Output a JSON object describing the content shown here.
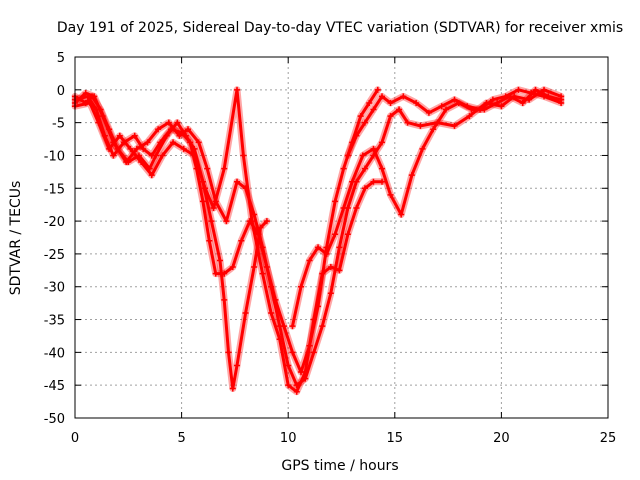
{
  "chart_data": {
    "type": "scatter",
    "title": "Day 191 of 2025, Sidereal Day-to-day VTEC variation (SDTVAR) for receiver xmis",
    "xlabel": "GPS time / hours",
    "ylabel": "SDTVAR / TECUs",
    "xlim": [
      0,
      25
    ],
    "ylim": [
      -50,
      5
    ],
    "xticks": [
      0,
      5,
      10,
      15,
      20,
      25
    ],
    "yticks": [
      5,
      0,
      -5,
      -10,
      -15,
      -20,
      -25,
      -30,
      -35,
      -40,
      -45,
      -50
    ],
    "grid": true,
    "marker": "plus",
    "color": "#ff0000",
    "series": [
      {
        "points": [
          [
            0,
            -1
          ],
          [
            0.5,
            -2
          ],
          [
            0.8,
            -1
          ],
          [
            1.2,
            -3
          ],
          [
            1.6,
            -6
          ],
          [
            2,
            -9
          ],
          [
            2.5,
            -11
          ],
          [
            3,
            -10
          ],
          [
            3.5,
            -12
          ],
          [
            3.8,
            -10
          ],
          [
            4.3,
            -7
          ],
          [
            4.8,
            -5
          ],
          [
            5.2,
            -7
          ],
          [
            5.6,
            -9
          ],
          [
            6,
            -14
          ],
          [
            6.4,
            -20
          ],
          [
            6.8,
            -26
          ],
          [
            7.0,
            -32
          ],
          [
            7.2,
            -40
          ],
          [
            7.4,
            -45.5
          ],
          [
            7.6,
            -42
          ],
          [
            8.0,
            -34
          ],
          [
            8.4,
            -27
          ],
          [
            8.7,
            -21
          ],
          [
            9.0,
            -20
          ]
        ]
      },
      {
        "points": [
          [
            0,
            -1.5
          ],
          [
            0.6,
            -1
          ],
          [
            1.0,
            -3
          ],
          [
            1.4,
            -7
          ],
          [
            1.8,
            -10
          ],
          [
            2.3,
            -8
          ],
          [
            2.8,
            -7
          ],
          [
            3.2,
            -9
          ],
          [
            3.6,
            -10
          ],
          [
            4.0,
            -8
          ],
          [
            4.5,
            -6
          ],
          [
            5.0,
            -6.5
          ],
          [
            5.4,
            -8
          ],
          [
            5.7,
            -12
          ],
          [
            6.0,
            -17
          ],
          [
            6.3,
            -23
          ],
          [
            6.6,
            -28
          ],
          [
            7.0,
            -28
          ],
          [
            7.4,
            -27
          ],
          [
            7.8,
            -23
          ],
          [
            8.2,
            -20
          ],
          [
            8.6,
            -22
          ],
          [
            9.0,
            -27
          ],
          [
            9.4,
            -32
          ],
          [
            9.8,
            -36
          ],
          [
            10.2,
            -40
          ],
          [
            10.6,
            -43
          ],
          [
            11.0,
            -39
          ],
          [
            11.4,
            -33
          ],
          [
            11.8,
            -24
          ],
          [
            12.2,
            -17
          ],
          [
            12.6,
            -12
          ],
          [
            13.0,
            -8
          ],
          [
            13.4,
            -4
          ],
          [
            13.8,
            -2
          ],
          [
            14.2,
            0
          ]
        ]
      },
      {
        "points": [
          [
            0,
            -2
          ],
          [
            0.5,
            -0.5
          ],
          [
            0.9,
            -1
          ],
          [
            1.3,
            -4
          ],
          [
            1.8,
            -8
          ],
          [
            2.4,
            -11
          ],
          [
            2.9,
            -9
          ],
          [
            3.4,
            -8
          ],
          [
            3.9,
            -6
          ],
          [
            4.4,
            -5
          ],
          [
            4.9,
            -7
          ],
          [
            5.3,
            -6
          ],
          [
            5.8,
            -8
          ],
          [
            6.2,
            -12
          ],
          [
            6.6,
            -17
          ],
          [
            7.1,
            -20
          ],
          [
            7.6,
            -14
          ],
          [
            8.0,
            -15
          ],
          [
            8.4,
            -19
          ],
          [
            8.8,
            -24
          ],
          [
            9.2,
            -30
          ],
          [
            9.6,
            -36
          ],
          [
            10.0,
            -42
          ],
          [
            10.4,
            -45
          ],
          [
            10.8,
            -44
          ],
          [
            11.2,
            -40
          ],
          [
            11.6,
            -36
          ],
          [
            12.0,
            -31
          ],
          [
            12.4,
            -24
          ],
          [
            12.8,
            -18
          ],
          [
            13.2,
            -14
          ],
          [
            13.6,
            -12
          ],
          [
            14.0,
            -10
          ],
          [
            14.4,
            -8
          ],
          [
            14.8,
            -4
          ],
          [
            15.2,
            -3
          ],
          [
            15.6,
            -5
          ],
          [
            16.2,
            -5.5
          ],
          [
            17,
            -5
          ],
          [
            17.8,
            -5.5
          ],
          [
            18.5,
            -4
          ],
          [
            19.3,
            -2
          ],
          [
            20.0,
            -2.5
          ],
          [
            20.6,
            -1
          ],
          [
            21.3,
            -1.5
          ],
          [
            22,
            0
          ],
          [
            22.8,
            -1
          ]
        ]
      },
      {
        "points": [
          [
            0,
            -2.5
          ],
          [
            0.7,
            -2
          ],
          [
            1.1,
            -5
          ],
          [
            1.6,
            -9
          ],
          [
            2.1,
            -7
          ],
          [
            2.6,
            -9
          ],
          [
            3.1,
            -11
          ],
          [
            3.6,
            -13
          ],
          [
            4.1,
            -10
          ],
          [
            4.6,
            -8
          ],
          [
            5.1,
            -9
          ],
          [
            5.6,
            -10
          ],
          [
            6.1,
            -15
          ],
          [
            6.5,
            -18
          ],
          [
            7.0,
            -12
          ],
          [
            7.6,
            0
          ],
          [
            7.9,
            -10
          ],
          [
            8.3,
            -20
          ],
          [
            8.8,
            -28
          ],
          [
            9.2,
            -34
          ],
          [
            9.6,
            -38
          ],
          [
            10.0,
            -45
          ],
          [
            10.4,
            -46
          ],
          [
            10.8,
            -43
          ],
          [
            11.2,
            -35
          ],
          [
            11.6,
            -28
          ],
          [
            12.0,
            -27
          ],
          [
            12.4,
            -27.5
          ],
          [
            12.8,
            -22
          ],
          [
            13.2,
            -18
          ],
          [
            13.6,
            -15
          ],
          [
            14.0,
            -14
          ],
          [
            14.4,
            -14
          ]
        ]
      },
      {
        "points": [
          [
            10.2,
            -36
          ],
          [
            10.6,
            -30
          ],
          [
            11.0,
            -26
          ],
          [
            11.4,
            -24
          ],
          [
            11.8,
            -25
          ],
          [
            12.2,
            -22
          ],
          [
            12.6,
            -18
          ],
          [
            13.0,
            -14
          ],
          [
            13.5,
            -10
          ],
          [
            14.0,
            -9
          ],
          [
            14.4,
            -12
          ],
          [
            14.8,
            -16
          ],
          [
            15.3,
            -19
          ],
          [
            15.8,
            -13
          ],
          [
            16.3,
            -9
          ],
          [
            16.8,
            -6
          ],
          [
            17.4,
            -3
          ],
          [
            18.0,
            -2
          ],
          [
            18.6,
            -3
          ],
          [
            19.2,
            -3
          ],
          [
            19.8,
            -2
          ],
          [
            20.4,
            -1
          ],
          [
            21.0,
            -2
          ],
          [
            21.6,
            0
          ],
          [
            22.2,
            -1
          ],
          [
            22.8,
            -1.5
          ]
        ]
      },
      {
        "points": [
          [
            12.8,
            -10
          ],
          [
            13.2,
            -7
          ],
          [
            13.6,
            -5
          ],
          [
            14.0,
            -3
          ],
          [
            14.4,
            -1
          ],
          [
            14.8,
            -2
          ],
          [
            15.4,
            -1
          ],
          [
            16.0,
            -2
          ],
          [
            16.6,
            -3.5
          ],
          [
            17.2,
            -2.5
          ],
          [
            17.8,
            -1.5
          ],
          [
            18.4,
            -2.5
          ],
          [
            19.0,
            -3
          ],
          [
            19.6,
            -1.5
          ],
          [
            20.2,
            -1
          ],
          [
            20.8,
            0
          ],
          [
            21.4,
            -0.5
          ],
          [
            22.0,
            -1
          ],
          [
            22.8,
            -2
          ]
        ]
      }
    ]
  }
}
